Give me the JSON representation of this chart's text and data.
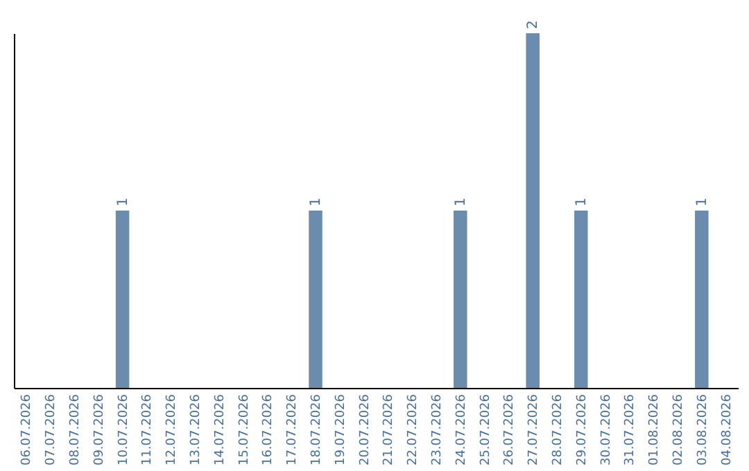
{
  "chart_data": {
    "type": "bar",
    "categories": [
      "06.07.2026",
      "07.07.2026",
      "08.07.2026",
      "09.07.2026",
      "10.07.2026",
      "11.07.2026",
      "12.07.2026",
      "13.07.2026",
      "14.07.2026",
      "15.07.2026",
      "16.07.2026",
      "17.07.2026",
      "18.07.2026",
      "19.07.2026",
      "20.07.2026",
      "21.07.2026",
      "22.07.2026",
      "23.07.2026",
      "24.07.2026",
      "25.07.2026",
      "26.07.2026",
      "27.07.2026",
      "28.07.2026",
      "29.07.2026",
      "30.07.2026",
      "31.07.2026",
      "01.08.2026",
      "02.08.2026",
      "03.08.2026",
      "04.08.2026"
    ],
    "values": [
      0,
      0,
      0,
      0,
      1,
      0,
      0,
      0,
      0,
      0,
      0,
      0,
      1,
      0,
      0,
      0,
      0,
      0,
      1,
      0,
      0,
      2,
      0,
      1,
      0,
      0,
      0,
      0,
      1,
      0
    ],
    "value_labels": [
      null,
      null,
      null,
      null,
      "1",
      null,
      null,
      null,
      null,
      null,
      null,
      null,
      "1",
      null,
      null,
      null,
      null,
      null,
      "1",
      null,
      null,
      "2",
      null,
      "1",
      null,
      null,
      null,
      null,
      "1",
      null
    ],
    "color": "#6b8cac",
    "tick_labels": "x"
  }
}
